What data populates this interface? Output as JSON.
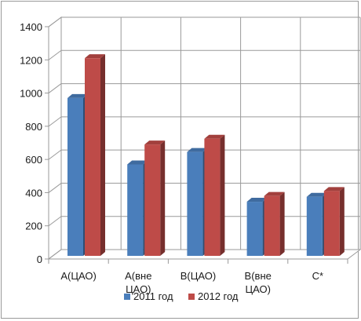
{
  "chart_data": {
    "type": "bar",
    "categories": [
      [
        "А(ЦАО)"
      ],
      [
        "А(вне",
        "ЦАО)"
      ],
      [
        "В(ЦАО)"
      ],
      [
        "В(вне",
        "ЦАО)"
      ],
      [
        "С*"
      ]
    ],
    "series": [
      {
        "name": "2011 год",
        "values": [
          970,
          570,
          645,
          345,
          375
        ],
        "color": "#4a7ebb"
      },
      {
        "name": "2012 год",
        "values": [
          1210,
          690,
          725,
          380,
          410
        ],
        "color": "#be4b48"
      }
    ],
    "ylim": [
      0,
      1400
    ],
    "yticks": [
      0,
      200,
      400,
      600,
      800,
      1000,
      1200,
      1400
    ],
    "grid": true,
    "legend_position": "bottom",
    "three_d": true
  }
}
